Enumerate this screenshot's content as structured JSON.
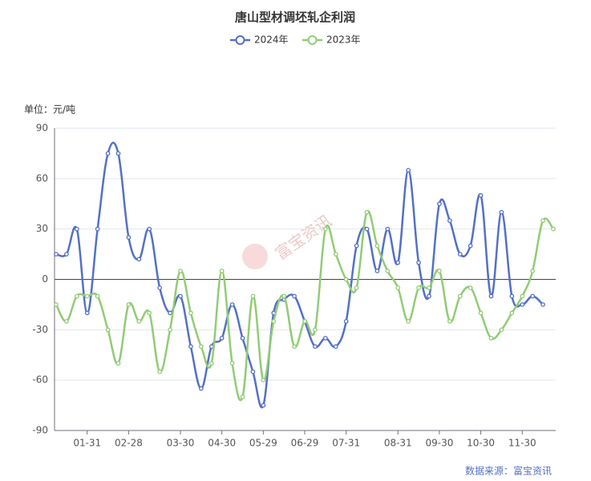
{
  "chart_data": {
    "type": "line",
    "title": "唐山型材调坯轧企利润",
    "y_unit": "单位：元/吨",
    "watermark": "富宝资讯",
    "source": "数据来源：富宝资讯",
    "categories": [
      null,
      null,
      null,
      "01-31",
      null,
      null,
      null,
      "02-28",
      null,
      null,
      null,
      null,
      "03-30",
      null,
      null,
      null,
      "04-30",
      null,
      null,
      null,
      "05-29",
      null,
      null,
      null,
      "06-29",
      null,
      null,
      null,
      "07-31",
      null,
      null,
      null,
      null,
      "08-31",
      null,
      null,
      null,
      "09-30",
      null,
      null,
      null,
      "10-30",
      null,
      null,
      null,
      "11-30",
      null,
      null,
      null
    ],
    "series": [
      {
        "name": "2024年",
        "color": "#5470c6",
        "values": [
          15,
          15,
          30,
          -20,
          30,
          75,
          75,
          25,
          12,
          30,
          -5,
          -20,
          -10,
          -40,
          -65,
          -40,
          -35,
          -15,
          -35,
          -55,
          -75,
          -20,
          -12,
          -10,
          -25,
          -40,
          -35,
          -40,
          -25,
          20,
          30,
          5,
          30,
          10,
          65,
          10,
          -10,
          45,
          35,
          15,
          20,
          50,
          -10,
          40,
          -10,
          -15,
          -10,
          -15,
          null
        ]
      },
      {
        "name": "2023年",
        "color": "#91cc75",
        "values": [
          -15,
          -25,
          -10,
          -10,
          -10,
          -30,
          -50,
          -15,
          -25,
          -20,
          -55,
          -30,
          5,
          -20,
          -40,
          -50,
          5,
          -50,
          -70,
          -10,
          -60,
          -25,
          -10,
          -40,
          -25,
          -30,
          30,
          15,
          0,
          -5,
          40,
          20,
          5,
          -5,
          -25,
          -5,
          -5,
          5,
          -25,
          -10,
          -5,
          -20,
          -35,
          -30,
          -20,
          -10,
          5,
          35,
          30
        ]
      }
    ],
    "ylim": [
      -90,
      90
    ],
    "yticks": [
      -90,
      -60,
      -30,
      0,
      30,
      60,
      90
    ],
    "grid": true,
    "legend": "top"
  }
}
